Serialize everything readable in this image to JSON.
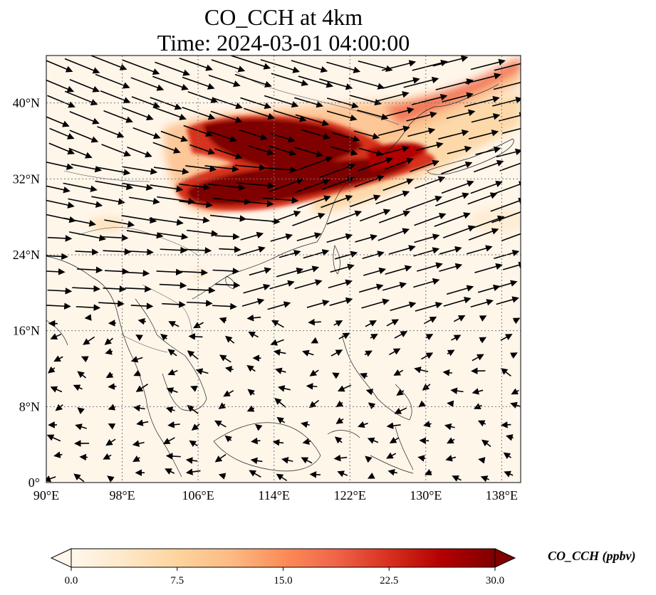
{
  "map": {
    "title_line1": "CO_CCH at 4km",
    "title_line2": "Time: 2024-03-01 04:00:00",
    "lon_range": [
      90,
      140
    ],
    "lat_range": [
      0,
      45
    ],
    "lon_ticks": [
      {
        "value": 90,
        "label": "90°E"
      },
      {
        "value": 98,
        "label": "98°E"
      },
      {
        "value": 106,
        "label": "106°E"
      },
      {
        "value": 114,
        "label": "114°E"
      },
      {
        "value": 122,
        "label": "122°E"
      },
      {
        "value": 130,
        "label": "130°E"
      },
      {
        "value": 138,
        "label": "138°E"
      }
    ],
    "lat_ticks": [
      {
        "value": 0,
        "label": "0°"
      },
      {
        "value": 8,
        "label": "8°N"
      },
      {
        "value": 16,
        "label": "16°N"
      },
      {
        "value": 24,
        "label": "24°N"
      },
      {
        "value": 32,
        "label": "32°N"
      },
      {
        "value": 40,
        "label": "40°N"
      }
    ],
    "gridlines": "dotted",
    "overlay": "wind vectors",
    "colormap": "OrRd"
  },
  "colorbar": {
    "title": "CO_CCH (ppbv)",
    "min": 0,
    "max": 30,
    "extend": "both",
    "ticks": [
      {
        "value": 0,
        "label": "0.0"
      },
      {
        "value": 7.5,
        "label": "7.5"
      },
      {
        "value": 15,
        "label": "15.0"
      },
      {
        "value": 22.5,
        "label": "22.5"
      },
      {
        "value": 30,
        "label": "30.0"
      }
    ],
    "colors": [
      "#fff7ec",
      "#fee8c8",
      "#fdd49e",
      "#fdbb84",
      "#fc8d59",
      "#ef6548",
      "#d7301f",
      "#b30000",
      "#7f0000"
    ]
  }
}
